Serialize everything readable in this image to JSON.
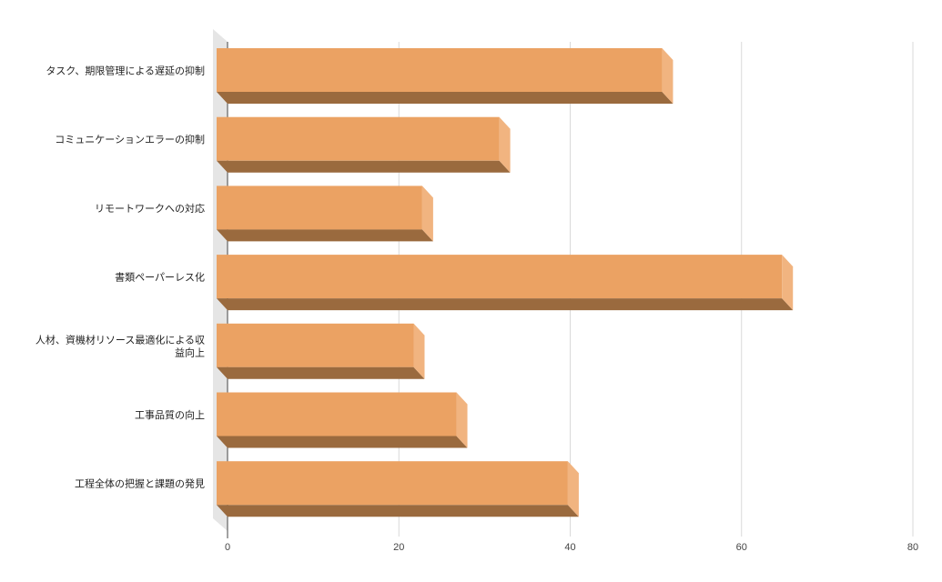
{
  "chart_data": {
    "type": "bar",
    "orientation": "horizontal",
    "style": "3d",
    "categories": [
      [
        "タスク、期限管理による遅延の抑制"
      ],
      [
        "コミュニケーションエラーの抑制"
      ],
      [
        "リモートワークへの対応"
      ],
      [
        "書類ペーパーレス化"
      ],
      [
        "人材、資機材リソース最適化による収",
        "益向上"
      ],
      [
        "工事品質の向上"
      ],
      [
        "工程全体の把握と課題の発見"
      ]
    ],
    "values": [
      52,
      33,
      24,
      66,
      23,
      28,
      41
    ],
    "xlim": [
      0,
      80
    ],
    "xticks": [
      "0",
      "20",
      "40",
      "60",
      "80"
    ],
    "grid": true,
    "legend": "none",
    "colors": {
      "bar_front": "#eba263",
      "bar_bottom": "#9a6a3e",
      "bar_side": "#f1b480",
      "wall": "#e5e5e5",
      "grid": "#d9d9d9",
      "axis": "#444444"
    }
  }
}
